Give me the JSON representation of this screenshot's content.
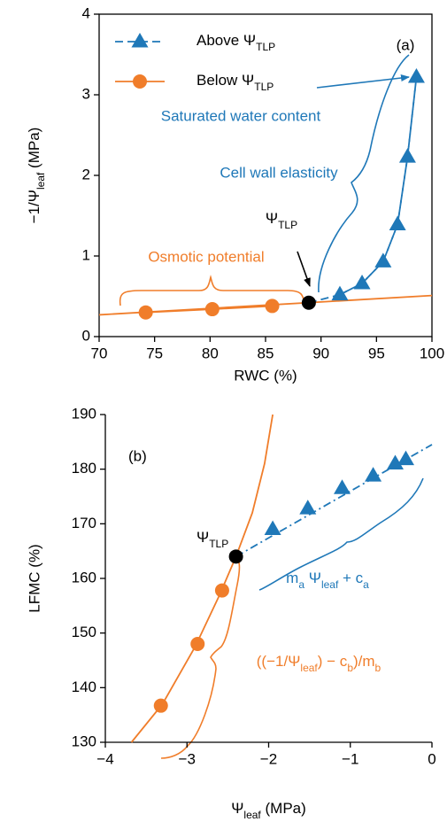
{
  "chart_data": [
    {
      "type": "scatter",
      "x_label": "RWC (%)",
      "y_label": [
        "−1/Ψ",
        "leaf",
        " (MPa)"
      ],
      "xlim": [
        70,
        100
      ],
      "xticks": [
        70,
        75,
        80,
        85,
        90,
        95,
        100
      ],
      "ylim": [
        0,
        4
      ],
      "yticks": [
        0,
        1,
        2,
        3,
        4
      ],
      "frame": "box",
      "series": [
        {
          "name": [
            "Above Ψ",
            "TLP"
          ],
          "color": "#1f78b8",
          "marker": "triangle",
          "line": "dashed",
          "x": [
            91.7,
            93.7,
            95.6,
            96.9,
            97.8,
            98.6
          ],
          "values": [
            0.52,
            0.66,
            0.93,
            1.39,
            2.23,
            3.22
          ]
        },
        {
          "name": [
            "Below Ψ",
            "TLP"
          ],
          "color": "#f07d2a",
          "marker": "circle",
          "line": "solid",
          "x": [
            74.2,
            80.2,
            85.6
          ],
          "values": [
            0.3,
            0.34,
            0.38
          ]
        },
        {
          "color": "#f07d2a",
          "marker": "none",
          "line": "solid",
          "x": [
            70,
            100
          ],
          "values": [
            0.27,
            0.51
          ]
        },
        {
          "color": "#1f78b8",
          "marker": "none",
          "line": "dashed",
          "x": [
            88.9,
            91.7,
            93.7,
            95.6,
            96.9,
            97.8,
            98.6
          ],
          "values": [
            0.42,
            0.52,
            0.66,
            0.93,
            1.39,
            2.23,
            3.22
          ]
        },
        {
          "color": "#000000",
          "marker": "circle",
          "line": "none",
          "x": [
            88.9
          ],
          "values": [
            0.42
          ]
        }
      ],
      "annotations": [
        "(a)",
        "Saturated water content",
        "Cell wall elasticity",
        [
          "Ψ",
          "TLP"
        ],
        "Osmotic potential"
      ]
    },
    {
      "type": "scatter",
      "x_label": [
        "Ψ",
        "leaf",
        " (MPa)"
      ],
      "y_label": "LFMC (%)",
      "xlim": [
        -4,
        0
      ],
      "xticks": [
        {
          "value": -4,
          "label": "−4"
        },
        {
          "value": -3,
          "label": "−3"
        },
        {
          "value": -2,
          "label": "−2"
        },
        {
          "value": -1,
          "label": "−1"
        },
        0
      ],
      "ylim": [
        130,
        190
      ],
      "yticks": [
        130,
        140,
        150,
        160,
        170,
        180,
        190
      ],
      "frame": "axes",
      "series": [
        {
          "color": "#1f78b8",
          "marker": "triangle",
          "line": "none",
          "x": [
            -1.95,
            -1.52,
            -1.1,
            -0.72,
            -0.45,
            -0.32
          ],
          "values": [
            169,
            172.8,
            176.5,
            178.8,
            181,
            181.8
          ]
        },
        {
          "color": "#f07d2a",
          "marker": "circle",
          "line": "none",
          "x": [
            -3.32,
            -2.87,
            -2.57
          ],
          "values": [
            136.7,
            148,
            157.8
          ]
        },
        {
          "color": "#1f78b8",
          "marker": "none",
          "line": "dashdot",
          "x": [
            -2.4,
            0
          ],
          "values": [
            164,
            184.5
          ]
        },
        {
          "color": "#f07d2a",
          "marker": "none",
          "line": "solid",
          "x": [
            -3.68,
            -3.3,
            -2.9,
            -2.6,
            -2.4,
            -2.2,
            -2.05,
            -1.95
          ],
          "values": [
            130,
            137,
            147.5,
            157,
            164,
            172,
            181,
            190
          ]
        },
        {
          "color": "#000000",
          "marker": "circle",
          "line": "none",
          "x": [
            -2.4
          ],
          "values": [
            164
          ]
        }
      ],
      "annotations": [
        "(b)",
        [
          "Ψ",
          "TLP"
        ],
        [
          "m",
          "a",
          " Ψ",
          "leaf",
          " + c",
          "a"
        ],
        [
          "((−1/Ψ",
          "leaf",
          ") − c",
          "b",
          ")/m",
          "b"
        ]
      ]
    }
  ]
}
